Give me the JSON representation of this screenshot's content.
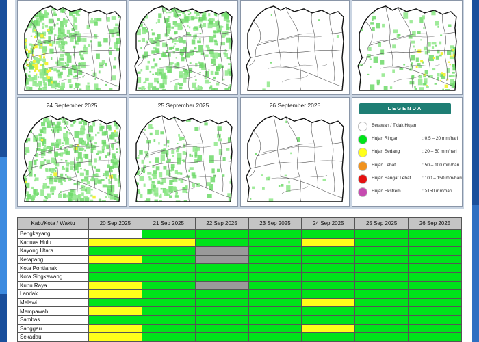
{
  "colors": {
    "none": "#ffffff",
    "ringan": "#00e31a",
    "sedang": "#ffff1a",
    "lebat": "#f0921e",
    "sangat_lebat": "#e41010",
    "ekstrem": "#c64bb0",
    "nodata": "#9a9a9a",
    "legend_header": "#1e7e74"
  },
  "maps": {
    "top_row": [
      {
        "title": ""
      },
      {
        "title": ""
      },
      {
        "title": ""
      },
      {
        "title": ""
      }
    ],
    "bottom_row": [
      {
        "title": "24 September 2025"
      },
      {
        "title": "25 September 2025"
      },
      {
        "title": "26 September 2025"
      }
    ]
  },
  "legend": {
    "title": "LEGENDA",
    "items": [
      {
        "label": "Berawan / Tidak Hujan",
        "range": "",
        "color_key": "none",
        "icon": "circle-empty-icon"
      },
      {
        "label": "Hujan Ringan",
        "range": ": 0.5 – 20 mm/hari",
        "color_key": "ringan",
        "icon": "circle-green-icon"
      },
      {
        "label": "Hujan Sedang",
        "range": ": 20 – 50 mm/hari",
        "color_key": "sedang",
        "icon": "circle-yellow-icon"
      },
      {
        "label": "Hujan Lebat",
        "range": ": 50 – 100 mm/hari",
        "color_key": "lebat",
        "icon": "circle-orange-icon"
      },
      {
        "label": "Hujan Sangat Lebat",
        "range": ": 100 – 150 mm/hari",
        "color_key": "sangat_lebat",
        "icon": "circle-red-icon"
      },
      {
        "label": "Hujan Ekstrem",
        "range": ": >150 mm/hari",
        "color_key": "ekstrem",
        "icon": "circle-purple-icon"
      }
    ]
  },
  "table": {
    "header": [
      "Kab./Kota / Waktu",
      "20 Sep 2025",
      "21 Sep 2025",
      "22 Sep 2025",
      "23 Sep 2025",
      "24 Sep 2025",
      "25 Sep 2025",
      "26 Sep 2025"
    ],
    "rows": [
      {
        "name": "Bengkayang",
        "cells": [
          "none",
          "ringan",
          "ringan",
          "ringan",
          "ringan",
          "ringan",
          "ringan"
        ]
      },
      {
        "name": "Kapuas Hulu",
        "cells": [
          "sedang",
          "sedang",
          "ringan",
          "ringan",
          "sedang",
          "ringan",
          "ringan"
        ]
      },
      {
        "name": "Kayong Utara",
        "cells": [
          "ringan",
          "ringan",
          "nodata",
          "ringan",
          "ringan",
          "ringan",
          "ringan"
        ]
      },
      {
        "name": "Ketapang",
        "cells": [
          "sedang",
          "ringan",
          "nodata",
          "ringan",
          "ringan",
          "ringan",
          "ringan"
        ]
      },
      {
        "name": "Kota Pontianak",
        "cells": [
          "ringan",
          "ringan",
          "ringan",
          "ringan",
          "ringan",
          "ringan",
          "ringan"
        ]
      },
      {
        "name": "Kota Singkawang",
        "cells": [
          "ringan",
          "ringan",
          "ringan",
          "ringan",
          "ringan",
          "ringan",
          "ringan"
        ]
      },
      {
        "name": "Kubu Raya",
        "cells": [
          "sedang",
          "ringan",
          "nodata",
          "ringan",
          "ringan",
          "ringan",
          "ringan"
        ]
      },
      {
        "name": "Landak",
        "cells": [
          "sedang",
          "ringan",
          "ringan",
          "ringan",
          "ringan",
          "ringan",
          "ringan"
        ]
      },
      {
        "name": "Melawi",
        "cells": [
          "ringan",
          "ringan",
          "ringan",
          "ringan",
          "sedang",
          "ringan",
          "ringan"
        ]
      },
      {
        "name": "Mempawah",
        "cells": [
          "sedang",
          "ringan",
          "ringan",
          "ringan",
          "ringan",
          "ringan",
          "ringan"
        ]
      },
      {
        "name": "Sambas",
        "cells": [
          "ringan",
          "ringan",
          "ringan",
          "ringan",
          "ringan",
          "ringan",
          "ringan"
        ]
      },
      {
        "name": "Sanggau",
        "cells": [
          "sedang",
          "ringan",
          "ringan",
          "ringan",
          "sedang",
          "ringan",
          "ringan"
        ]
      },
      {
        "name": "Sekadau",
        "cells": [
          "sedang",
          "ringan",
          "ringan",
          "ringan",
          "ringan",
          "ringan",
          "ringan"
        ]
      }
    ]
  }
}
